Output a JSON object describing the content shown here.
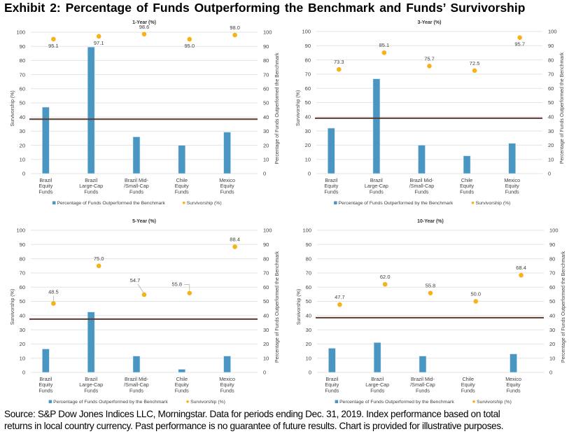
{
  "title": "Exhibit 2: Percentage of Funds Outperforming the Benchmark and Funds’ Survivorship",
  "footer": {
    "line1": "Source: S&P Dow Jones Indices LLC, Morningstar. Data for periods ending Dec. 31, 2019. Index performance based on total",
    "line2": "returns in local country currency. Past performance is no guarantee of future results. Chart is provided for illustrative purposes."
  },
  "colors": {
    "bar": "#4a96c3",
    "dot": "#f7b219",
    "line": "#5b3b2f",
    "grid": "#e3e3e3",
    "text": "#404040"
  },
  "chart_data": [
    {
      "type": "bar",
      "title": "1-Year (%)",
      "categories": [
        [
          "Brazil",
          "Equity",
          "Funds"
        ],
        [
          "Brazil",
          "Large-Cap",
          "Funds"
        ],
        [
          "Brazil Mid-",
          "/Small-Cap",
          "Funds"
        ],
        [
          "Chile",
          "Equity",
          "Funds"
        ],
        [
          "Mexico",
          "Equity",
          "Funds"
        ]
      ],
      "ylabel_left": "Survivorship (%)",
      "ylabel_right": "Percentage of Funds Outperformed the Benchmark",
      "ylim": [
        0,
        100
      ],
      "yticks": [
        0,
        10,
        20,
        30,
        40,
        50,
        60,
        70,
        80,
        90,
        100
      ],
      "grid": true,
      "legend_position": "bottom",
      "series": [
        {
          "name": "Percentage of Funds Outperformed the Benchmark",
          "kind": "bar",
          "values": [
            47,
            89.5,
            26,
            20,
            29.3
          ]
        },
        {
          "name": "Survivorship (%)",
          "kind": "scatter",
          "values": [
            95.1,
            97.1,
            98.6,
            95.0,
            98.0
          ],
          "labels": [
            "95.1",
            "97.1",
            "98.6",
            "95.0",
            "98.0"
          ],
          "label_pos": [
            "below",
            "below",
            "above",
            "below",
            "above"
          ]
        }
      ],
      "reference_line": 38.5
    },
    {
      "type": "bar",
      "title": "3-Year (%)",
      "categories": [
        [
          "Brazil",
          "Equity",
          "Funds"
        ],
        [
          "Brazil",
          "Large-Cap",
          "Funds"
        ],
        [
          "Brazil Mid-",
          "/Small-Cap",
          "Funds"
        ],
        [
          "Chile",
          "Equity",
          "Funds"
        ],
        [
          "Mexico",
          "Equity",
          "Funds"
        ]
      ],
      "ylabel_left": "Survivorship (%)",
      "ylabel_right": "Percentage of Funds Outperformed  the Benchmark",
      "ylim": [
        0,
        100
      ],
      "yticks": [
        0,
        10,
        20,
        30,
        40,
        50,
        60,
        70,
        80,
        90,
        100
      ],
      "grid": true,
      "legend_position": "bottom",
      "series": [
        {
          "name": "Percentage of Funds Outperformed by the Benchmark",
          "kind": "bar",
          "values": [
            32,
            66.7,
            20,
            12.5,
            21.3
          ]
        },
        {
          "name": "Survivorship (%)",
          "kind": "scatter",
          "values": [
            73.3,
            85.1,
            75.7,
            72.5,
            95.7
          ],
          "labels": [
            "73.3",
            "85.1",
            "75.7",
            "72.5",
            "95.7"
          ],
          "label_pos": [
            "above",
            "above",
            "above",
            "above",
            "below"
          ]
        }
      ],
      "reference_line": 39
    },
    {
      "type": "bar",
      "title": "5-Year (%)",
      "categories": [
        [
          "Brazil",
          "Equity",
          "Funds"
        ],
        [
          "Brazil",
          "Large-Cap",
          "Funds"
        ],
        [
          "Brazil Mid-",
          "/Small-Cap",
          "Funds"
        ],
        [
          "Chile",
          "Equity",
          "Funds"
        ],
        [
          "Mexico",
          "Equity",
          "Funds"
        ]
      ],
      "ylabel_left": "Survivorship (%)",
      "ylabel_right": "Percentage of Funds Outperformed the Benchmark",
      "ylim": [
        0,
        100
      ],
      "yticks": [
        0,
        10,
        20,
        30,
        40,
        50,
        60,
        70,
        80,
        90,
        100
      ],
      "grid": true,
      "legend_position": "bottom",
      "series": [
        {
          "name": "Percentage of Funds Outperformed by the Benchmark",
          "kind": "bar",
          "values": [
            16.5,
            42.5,
            11.5,
            2.2,
            11.5
          ]
        },
        {
          "name": "Survivorship (%)",
          "kind": "scatter",
          "values": [
            48.5,
            75.0,
            54.7,
            55.8,
            88.4
          ],
          "labels": [
            "48.5",
            "75.0",
            "54.7",
            "55.8",
            "88.4"
          ],
          "label_pos": [
            "leader-up",
            "above",
            "leader-left-up",
            "leader-left",
            "above"
          ]
        }
      ],
      "reference_line": 37.5
    },
    {
      "type": "bar",
      "title": "10-Year (%)",
      "categories": [
        [
          "Brazil",
          "Equity",
          "Funds"
        ],
        [
          "Brazil",
          "Large-Cap",
          "Funds"
        ],
        [
          "Brazil Mid-",
          "/Small-Cap",
          "Funds"
        ],
        [
          "Chile",
          "Equity",
          "Funds"
        ],
        [
          "Mexico",
          "Equity",
          "Funds"
        ]
      ],
      "ylabel_left": "Survivorship (%)",
      "ylabel_right": "Percentage of Funds Outperformed  the Benchmark",
      "ylim": [
        0,
        100
      ],
      "yticks": [
        0,
        10,
        20,
        30,
        40,
        50,
        60,
        70,
        80,
        90,
        100
      ],
      "grid": true,
      "legend_position": "bottom",
      "series": [
        {
          "name": "Percentage of Funds Outperformed by the Benchmark",
          "kind": "bar",
          "values": [
            17,
            21,
            11.5,
            0,
            13
          ]
        },
        {
          "name": "Survivorship (%)",
          "kind": "scatter",
          "values": [
            47.7,
            62.0,
            55.8,
            50.0,
            68.4
          ],
          "labels": [
            "47.7",
            "62.0",
            "55.8",
            "50.0",
            "68.4"
          ],
          "label_pos": [
            "above",
            "above",
            "above",
            "above",
            "above"
          ]
        }
      ],
      "reference_line": 38.5
    }
  ]
}
